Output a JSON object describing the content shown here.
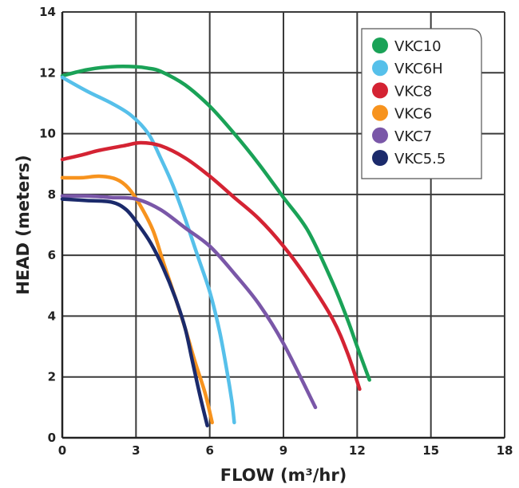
{
  "chart_data": {
    "type": "line",
    "title": "",
    "xlabel": "FLOW (m³/hr)",
    "ylabel": "HEAD (meters)",
    "xlim": [
      0,
      18
    ],
    "ylim": [
      0,
      14
    ],
    "xticks": [
      0,
      3,
      6,
      9,
      12,
      15,
      18
    ],
    "yticks": [
      0,
      2,
      4,
      6,
      8,
      10,
      12,
      14
    ],
    "grid": true,
    "legend_position": "top-right",
    "series": [
      {
        "name": "VKC10",
        "color": "#1aa257",
        "points": [
          [
            0,
            11.9
          ],
          [
            1,
            12.1
          ],
          [
            2,
            12.2
          ],
          [
            3,
            12.2
          ],
          [
            3.5,
            12.15
          ],
          [
            4,
            12.05
          ],
          [
            5,
            11.6
          ],
          [
            6,
            10.9
          ],
          [
            7,
            10.0
          ],
          [
            8,
            9.0
          ],
          [
            9,
            7.9
          ],
          [
            10,
            6.8
          ],
          [
            11,
            5.1
          ],
          [
            11.6,
            3.9
          ],
          [
            12,
            3.0
          ],
          [
            12.5,
            1.9
          ]
        ]
      },
      {
        "name": "VKC6H",
        "color": "#56c0ea",
        "points": [
          [
            0,
            11.85
          ],
          [
            1,
            11.4
          ],
          [
            2,
            11.0
          ],
          [
            2.8,
            10.6
          ],
          [
            3.5,
            10.0
          ],
          [
            4,
            9.2
          ],
          [
            4.5,
            8.3
          ],
          [
            5,
            7.2
          ],
          [
            5.5,
            6.0
          ],
          [
            6,
            4.8
          ],
          [
            6.4,
            3.5
          ],
          [
            6.7,
            2.2
          ],
          [
            6.9,
            1.2
          ],
          [
            7.0,
            0.5
          ]
        ]
      },
      {
        "name": "VKC8",
        "color": "#d42333",
        "points": [
          [
            0,
            9.15
          ],
          [
            0.8,
            9.3
          ],
          [
            1.5,
            9.45
          ],
          [
            2.5,
            9.6
          ],
          [
            3.2,
            9.7
          ],
          [
            4,
            9.6
          ],
          [
            5,
            9.2
          ],
          [
            6,
            8.6
          ],
          [
            7,
            7.9
          ],
          [
            8,
            7.2
          ],
          [
            9,
            6.3
          ],
          [
            10,
            5.2
          ],
          [
            11,
            3.9
          ],
          [
            11.6,
            2.8
          ],
          [
            12.1,
            1.6
          ]
        ]
      },
      {
        "name": "VKC6",
        "color": "#f7931e",
        "points": [
          [
            0,
            8.55
          ],
          [
            0.8,
            8.55
          ],
          [
            1.5,
            8.6
          ],
          [
            2.2,
            8.5
          ],
          [
            2.7,
            8.2
          ],
          [
            3.2,
            7.6
          ],
          [
            3.7,
            6.8
          ],
          [
            4.1,
            5.8
          ],
          [
            4.6,
            4.6
          ],
          [
            5.0,
            3.6
          ],
          [
            5.4,
            2.5
          ],
          [
            5.8,
            1.5
          ],
          [
            6.1,
            0.5
          ]
        ]
      },
      {
        "name": "VKC7",
        "color": "#7a57a8",
        "points": [
          [
            0,
            7.95
          ],
          [
            1,
            7.95
          ],
          [
            2,
            7.9
          ],
          [
            3,
            7.85
          ],
          [
            4,
            7.5
          ],
          [
            5,
            6.9
          ],
          [
            6,
            6.3
          ],
          [
            7,
            5.4
          ],
          [
            8,
            4.4
          ],
          [
            9,
            3.1
          ],
          [
            10.3,
            1.0
          ]
        ]
      },
      {
        "name": "VKC5.5",
        "color": "#1b2a6b",
        "points": [
          [
            0,
            7.85
          ],
          [
            1,
            7.8
          ],
          [
            2,
            7.75
          ],
          [
            2.6,
            7.5
          ],
          [
            3.1,
            7.0
          ],
          [
            3.6,
            6.4
          ],
          [
            4.1,
            5.6
          ],
          [
            4.6,
            4.6
          ],
          [
            5.0,
            3.6
          ],
          [
            5.3,
            2.5
          ],
          [
            5.6,
            1.4
          ],
          [
            5.9,
            0.4
          ]
        ]
      }
    ]
  }
}
